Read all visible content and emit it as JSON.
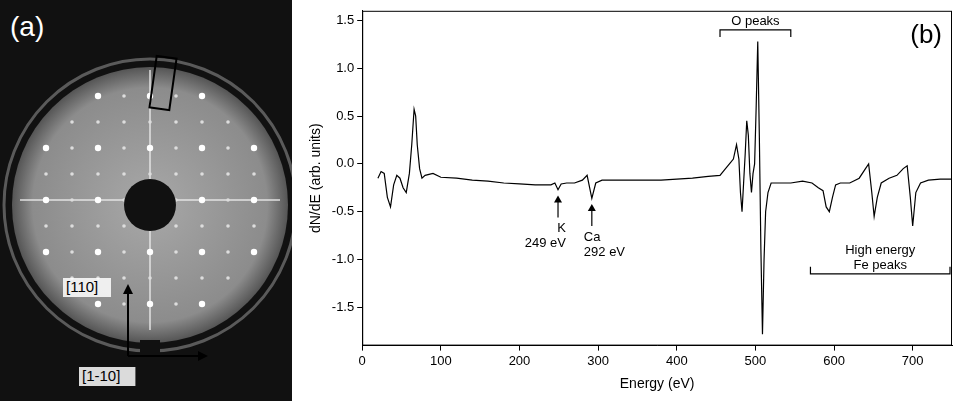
{
  "image_panel": {
    "panel_label": "(a)",
    "axis_labels": [
      "[110]",
      "[1-10]"
    ]
  },
  "chart_data": {
    "type": "line",
    "panel_label": "(b)",
    "x_label": "Energy (eV)",
    "y_label": "dN/dE (arb. units)",
    "x": [
      20,
      24,
      28,
      32,
      36,
      40,
      44,
      48,
      52,
      56,
      60,
      63,
      66,
      68,
      70,
      73,
      76,
      80,
      90,
      100,
      120,
      140,
      160,
      180,
      200,
      220,
      240,
      245,
      249,
      253,
      260,
      270,
      280,
      286,
      292,
      297,
      305,
      320,
      340,
      360,
      380,
      400,
      420,
      440,
      455,
      462,
      467,
      472,
      476,
      479,
      481,
      483,
      485,
      487,
      489,
      491,
      493,
      495,
      497,
      499,
      501,
      503,
      505,
      507,
      509,
      511,
      513,
      516,
      520,
      530,
      545,
      560,
      572,
      580,
      586,
      590,
      594,
      598,
      602,
      608,
      620,
      632,
      640,
      644,
      648,
      651,
      655,
      660,
      670,
      680,
      688,
      693,
      697,
      700,
      704,
      710,
      720,
      735,
      750
    ],
    "values": [
      -0.15,
      -0.08,
      -0.1,
      -0.35,
      -0.45,
      -0.22,
      -0.12,
      -0.15,
      -0.25,
      -0.3,
      -0.1,
      0.2,
      0.57,
      0.5,
      0.2,
      -0.05,
      -0.15,
      -0.12,
      -0.1,
      -0.14,
      -0.15,
      -0.17,
      -0.18,
      -0.2,
      -0.21,
      -0.22,
      -0.22,
      -0.2,
      -0.27,
      -0.21,
      -0.2,
      -0.2,
      -0.17,
      -0.12,
      -0.36,
      -0.2,
      -0.17,
      -0.17,
      -0.17,
      -0.17,
      -0.17,
      -0.16,
      -0.15,
      -0.13,
      -0.12,
      -0.05,
      0.0,
      0.05,
      0.2,
      0.05,
      -0.3,
      -0.5,
      -0.2,
      0.1,
      0.45,
      0.3,
      -0.1,
      -0.3,
      -0.1,
      0.0,
      0.6,
      1.28,
      0.3,
      -0.9,
      -1.78,
      -1.0,
      -0.5,
      -0.3,
      -0.2,
      -0.2,
      -0.2,
      -0.18,
      -0.2,
      -0.25,
      -0.28,
      -0.45,
      -0.5,
      -0.35,
      -0.22,
      -0.2,
      -0.2,
      -0.15,
      -0.05,
      0.0,
      -0.3,
      -0.55,
      -0.35,
      -0.2,
      -0.15,
      -0.12,
      -0.05,
      -0.02,
      -0.35,
      -0.65,
      -0.3,
      -0.2,
      -0.17,
      -0.16,
      -0.16
    ],
    "color": "#000000",
    "xlim": [
      0,
      750
    ],
    "xticks": [
      0,
      100,
      200,
      300,
      400,
      500,
      600,
      700
    ],
    "ylim": [
      -1.9,
      1.6
    ],
    "yticks": [
      {
        "value": -1.5,
        "label": "-1.5"
      },
      {
        "value": -1,
        "label": "-1.0"
      },
      {
        "value": -0.5,
        "label": "-0.5"
      },
      {
        "value": 0,
        "label": "0.0"
      },
      0.5,
      {
        "value": 1,
        "label": "1.0"
      },
      1.5
    ],
    "grid": false,
    "annotations": [
      {
        "lines": [
          "O peaks"
        ],
        "x_range": [
          455,
          545
        ],
        "y": 1.4
      },
      {
        "lines": [
          "K",
          "249 eV"
        ],
        "x": 249,
        "y": -0.33
      },
      {
        "lines": [
          "Ca",
          "292 eV"
        ],
        "x": 292,
        "y": -0.42
      },
      {
        "lines": [
          "High energy",
          "Fe peaks"
        ],
        "x_range": [
          570,
          750
        ],
        "y": -1.15
      }
    ]
  }
}
